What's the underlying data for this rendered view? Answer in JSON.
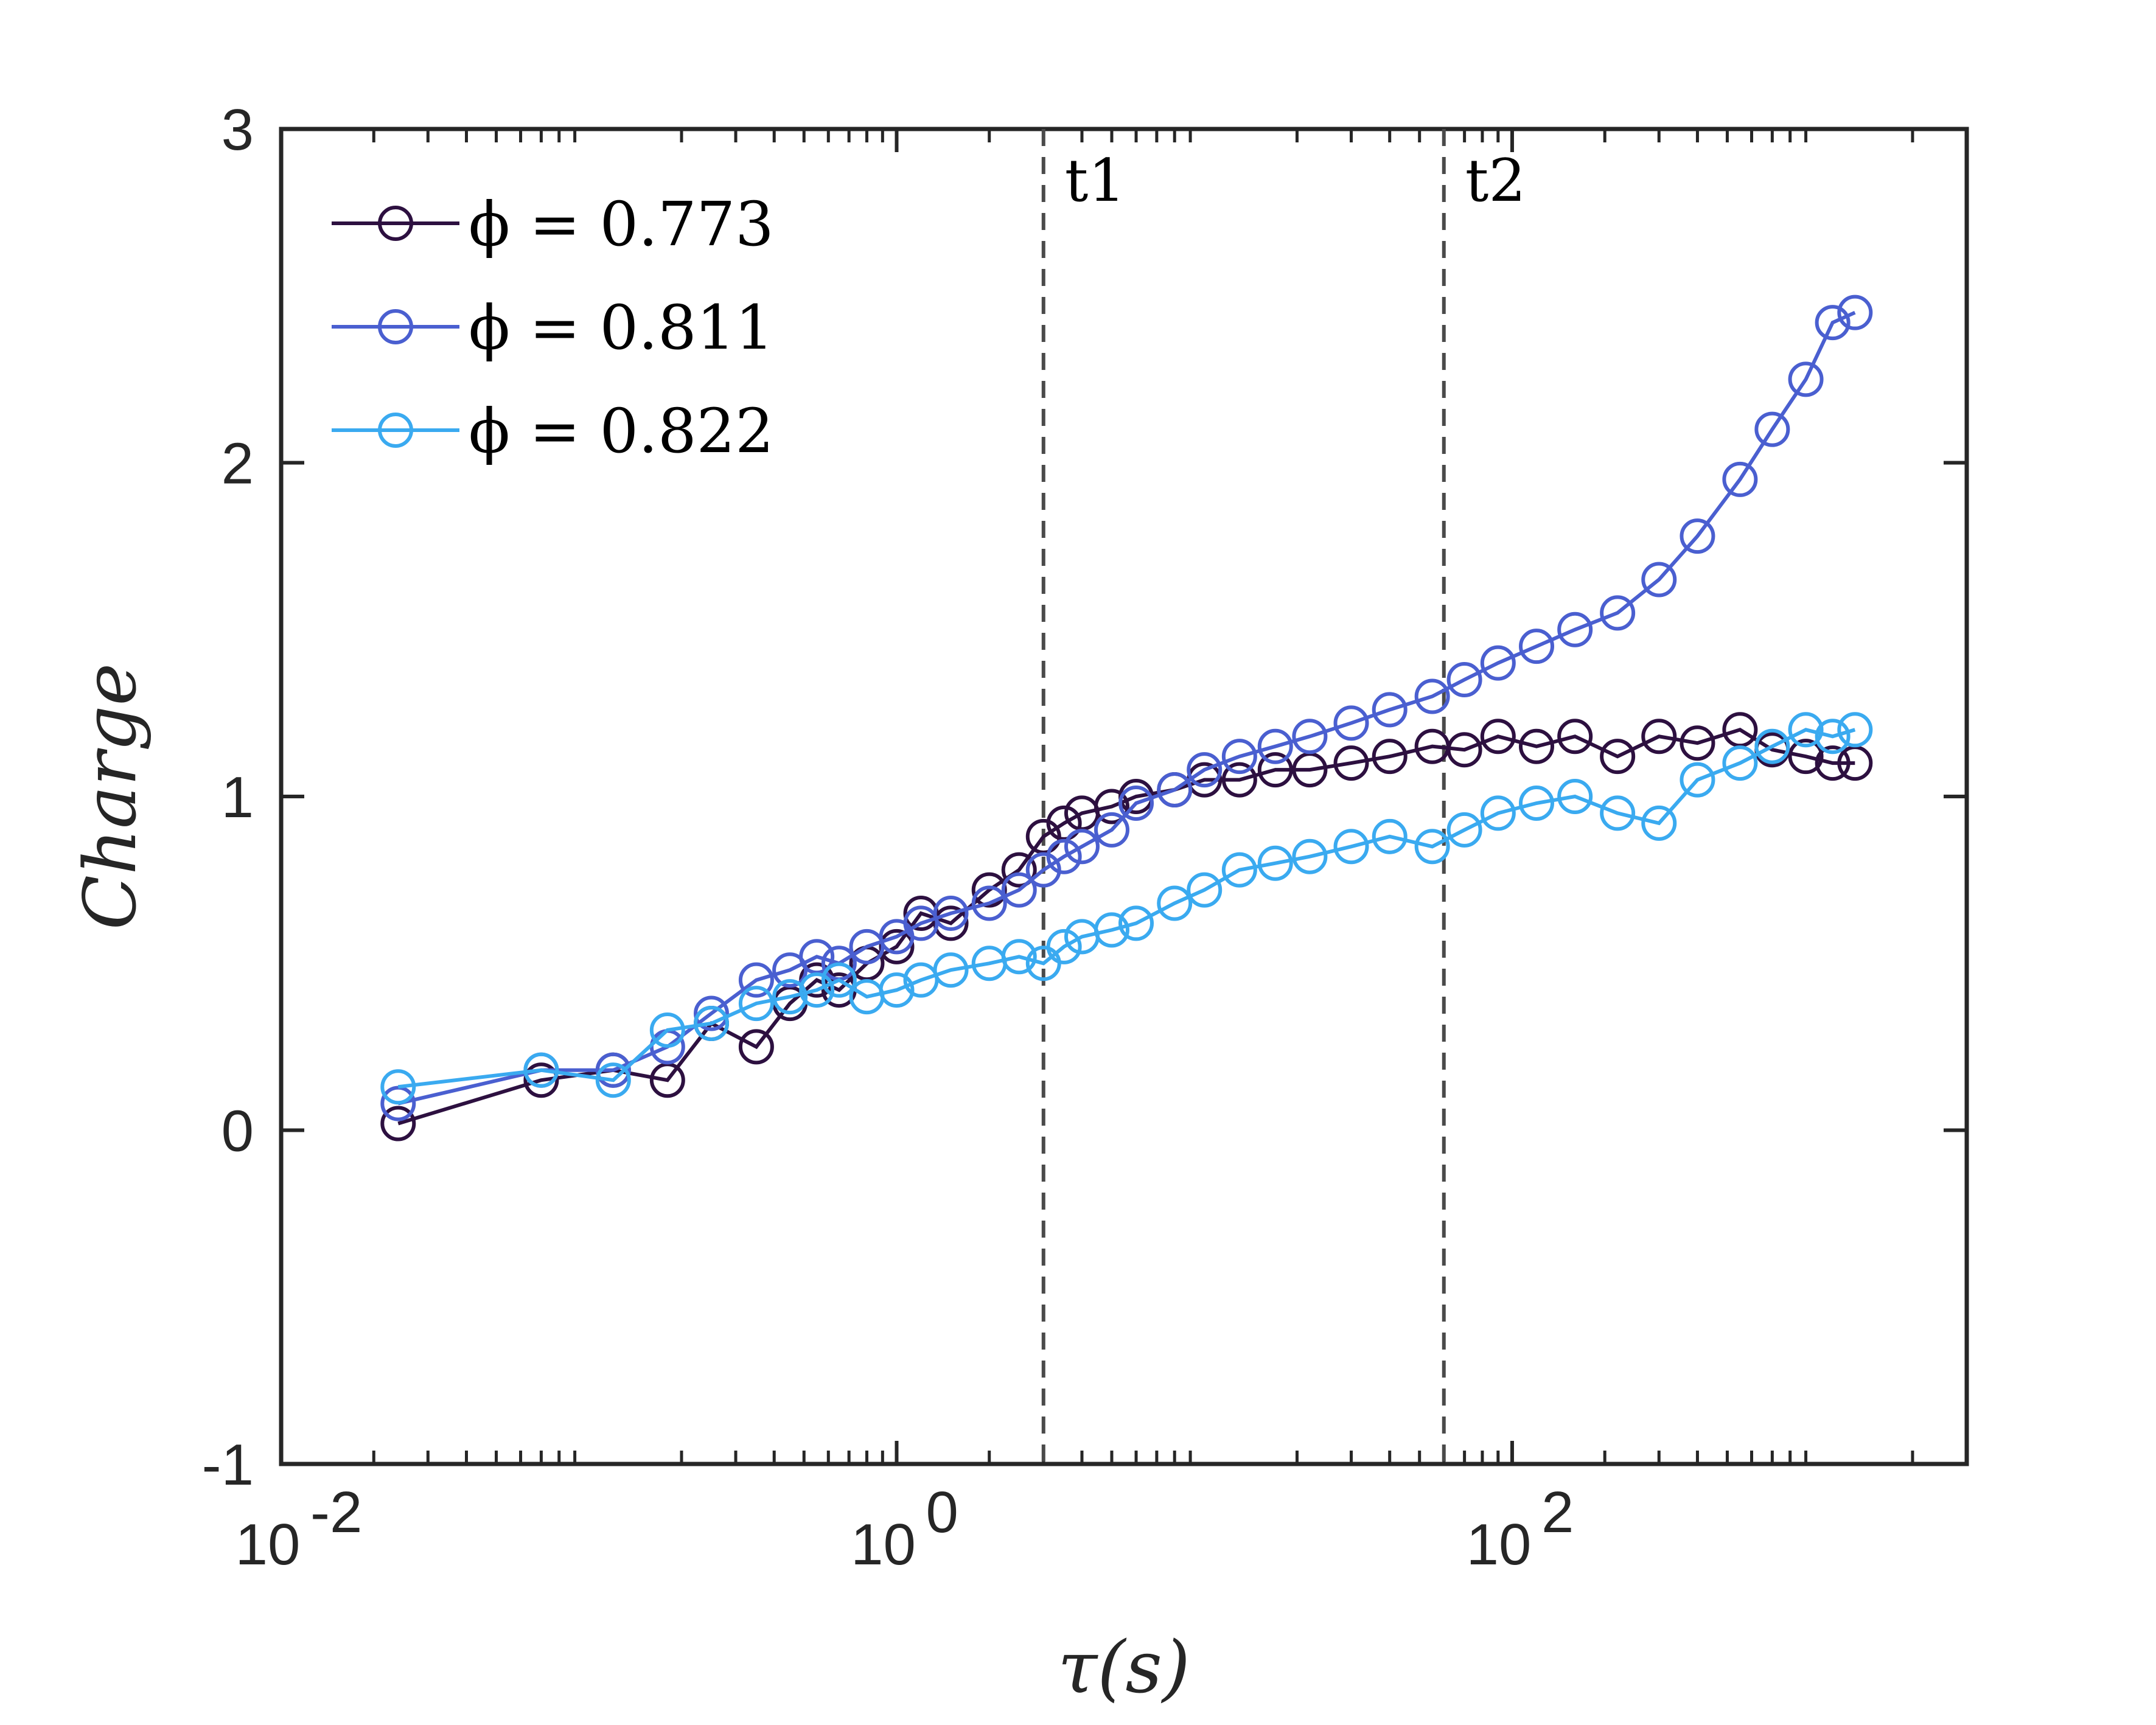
{
  "chart_data": {
    "type": "scatter",
    "title": "",
    "xlabel": "τ(s)",
    "ylabel": "Charge",
    "xscale": "log",
    "xlim": [
      0.01,
      3000
    ],
    "ylim": [
      -1,
      3
    ],
    "grid": false,
    "legend_position": "top-left",
    "x_ticks": [
      {
        "value": 0.01,
        "base": "10",
        "exp": "-2"
      },
      {
        "value": 1,
        "base": "10",
        "exp": "0"
      },
      {
        "value": 100,
        "base": "10",
        "exp": "2"
      }
    ],
    "y_ticks": [
      {
        "value": -1,
        "label": "-1"
      },
      {
        "value": 0,
        "label": "0"
      },
      {
        "value": 1,
        "label": "1"
      },
      {
        "value": 2,
        "label": "2"
      },
      {
        "value": 3,
        "label": "3"
      }
    ],
    "vlines": [
      {
        "x": 3,
        "label": "t1"
      },
      {
        "x": 60,
        "label": "t2"
      }
    ],
    "series": [
      {
        "name": "ϕ = 0.773",
        "color": "#2d1040",
        "x": [
          0.024,
          0.07,
          0.12,
          0.18,
          0.25,
          0.35,
          0.45,
          0.55,
          0.65,
          0.8,
          1.0,
          1.2,
          1.5,
          2.0,
          2.5,
          3.0,
          3.5,
          4.0,
          5.0,
          6.0,
          8.0,
          10,
          13,
          17,
          22,
          30,
          40,
          55,
          70,
          90,
          120,
          160,
          220,
          300,
          400,
          550,
          700,
          900,
          1100,
          1300
        ],
        "y": [
          0.02,
          0.15,
          0.18,
          0.15,
          0.32,
          0.25,
          0.38,
          0.45,
          0.42,
          0.5,
          0.55,
          0.65,
          0.62,
          0.72,
          0.78,
          0.88,
          0.92,
          0.95,
          0.97,
          1.0,
          1.02,
          1.05,
          1.05,
          1.08,
          1.08,
          1.1,
          1.12,
          1.15,
          1.14,
          1.18,
          1.15,
          1.18,
          1.12,
          1.18,
          1.16,
          1.2,
          1.14,
          1.12,
          1.1,
          1.1
        ]
      },
      {
        "name": "ϕ = 0.811",
        "color": "#4a5fd0",
        "x": [
          0.024,
          0.07,
          0.12,
          0.18,
          0.25,
          0.35,
          0.45,
          0.55,
          0.65,
          0.8,
          1.0,
          1.2,
          1.5,
          2.0,
          2.5,
          3.0,
          3.5,
          4.0,
          5.0,
          6.0,
          8.0,
          10,
          13,
          17,
          22,
          30,
          40,
          55,
          70,
          90,
          120,
          160,
          220,
          300,
          400,
          550,
          700,
          900,
          1100,
          1300
        ],
        "y": [
          0.08,
          0.18,
          0.18,
          0.25,
          0.35,
          0.45,
          0.48,
          0.52,
          0.5,
          0.55,
          0.58,
          0.62,
          0.65,
          0.68,
          0.72,
          0.78,
          0.82,
          0.85,
          0.9,
          0.98,
          1.02,
          1.08,
          1.12,
          1.15,
          1.18,
          1.22,
          1.26,
          1.3,
          1.35,
          1.4,
          1.45,
          1.5,
          1.55,
          1.65,
          1.78,
          1.95,
          2.1,
          2.25,
          2.42,
          2.45
        ]
      },
      {
        "name": "ϕ = 0.822",
        "color": "#3aaaf0",
        "x": [
          0.024,
          0.07,
          0.12,
          0.18,
          0.25,
          0.35,
          0.45,
          0.55,
          0.65,
          0.8,
          1.0,
          1.2,
          1.5,
          2.0,
          2.5,
          3.0,
          3.5,
          4.0,
          5.0,
          6.0,
          8.0,
          10,
          13,
          17,
          22,
          30,
          40,
          55,
          70,
          90,
          120,
          160,
          220,
          300,
          400,
          550,
          700,
          900,
          1100,
          1300
        ],
        "y": [
          0.13,
          0.18,
          0.15,
          0.3,
          0.32,
          0.38,
          0.4,
          0.42,
          0.45,
          0.4,
          0.42,
          0.45,
          0.48,
          0.5,
          0.52,
          0.5,
          0.55,
          0.58,
          0.6,
          0.62,
          0.68,
          0.72,
          0.78,
          0.8,
          0.82,
          0.85,
          0.88,
          0.85,
          0.9,
          0.95,
          0.98,
          1.0,
          0.95,
          0.92,
          1.05,
          1.1,
          1.15,
          1.2,
          1.18,
          1.2
        ]
      }
    ]
  }
}
